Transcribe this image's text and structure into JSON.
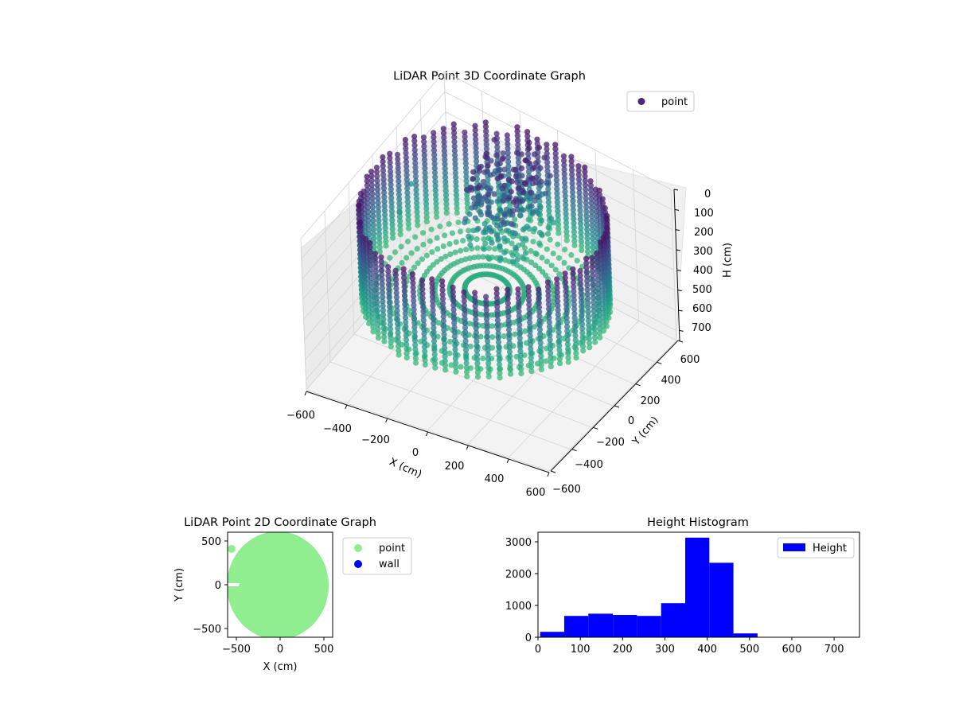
{
  "chart_data": [
    {
      "type": "scatter",
      "projection": "3d",
      "title": "LiDAR Point 3D Coordinate Graph",
      "xlabel": "X (cm)",
      "ylabel": "Y (cm)",
      "zlabel": "H (cm)",
      "xlim": [
        -600,
        600
      ],
      "ylim": [
        -600,
        600
      ],
      "zlim": [
        0,
        750
      ],
      "z_inverted": true,
      "xticks": [
        "−600",
        "−400",
        "−200",
        "0",
        "200",
        "400",
        "600"
      ],
      "yticks": [
        "−600",
        "−400",
        "−200",
        "0",
        "200",
        "400",
        "600"
      ],
      "zticks": [
        "0",
        "100",
        "200",
        "300",
        "400",
        "500",
        "600",
        "700"
      ],
      "colormap": "viridis",
      "legend": {
        "position": "top-right",
        "entries": [
          {
            "label": "point",
            "color": "#482878"
          }
        ]
      },
      "grid": true,
      "description_shape": "cylindrical wall of radius about 550 cm with a cluster of points near one side",
      "series": [
        {
          "name": "point"
        }
      ]
    },
    {
      "type": "scatter",
      "title": "LiDAR Point 2D Coordinate Graph",
      "xlabel": "X (cm)",
      "ylabel": "Y (cm)",
      "xlim": [
        -600,
        600
      ],
      "ylim": [
        -600,
        600
      ],
      "xticks": [
        "−500",
        "0",
        "500"
      ],
      "yticks": [
        "−500",
        "0",
        "500"
      ],
      "legend": {
        "position": "outside-right",
        "entries": [
          {
            "label": "point",
            "color": "#90ee90"
          },
          {
            "label": "wall",
            "color": "#0000ff"
          }
        ]
      },
      "series": [
        {
          "name": "point",
          "color": "#90ee90",
          "shape": "filled disk of radius about 550 cm centered near (-30, 0)"
        },
        {
          "name": "wall",
          "color": "#0000ff",
          "points": []
        }
      ]
    },
    {
      "type": "bar",
      "subtype": "histogram",
      "title": "Height Histogram",
      "xlabel": "",
      "ylabel": "",
      "xlim": [
        0,
        760
      ],
      "ylim": [
        0,
        3300
      ],
      "xticks": [
        "0",
        "100",
        "200",
        "300",
        "400",
        "500",
        "600",
        "700"
      ],
      "yticks": [
        "0",
        "1000",
        "2000",
        "3000"
      ],
      "bar_color": "#0000ff",
      "legend": {
        "position": "top-right",
        "entries": [
          {
            "label": "Height",
            "color": "#0000ff"
          }
        ]
      },
      "bins": [
        {
          "start": 5,
          "end": 62,
          "count": 170
        },
        {
          "start": 62,
          "end": 119,
          "count": 670
        },
        {
          "start": 119,
          "end": 177,
          "count": 740
        },
        {
          "start": 177,
          "end": 234,
          "count": 700
        },
        {
          "start": 234,
          "end": 291,
          "count": 670
        },
        {
          "start": 291,
          "end": 348,
          "count": 1070
        },
        {
          "start": 348,
          "end": 405,
          "count": 3130
        },
        {
          "start": 405,
          "end": 462,
          "count": 2340
        },
        {
          "start": 462,
          "end": 519,
          "count": 120
        },
        {
          "start": 519,
          "end": 576,
          "count": 10
        },
        {
          "start": 576,
          "end": 633,
          "count": 5
        },
        {
          "start": 633,
          "end": 690,
          "count": 3
        },
        {
          "start": 690,
          "end": 748,
          "count": 2
        }
      ]
    }
  ]
}
